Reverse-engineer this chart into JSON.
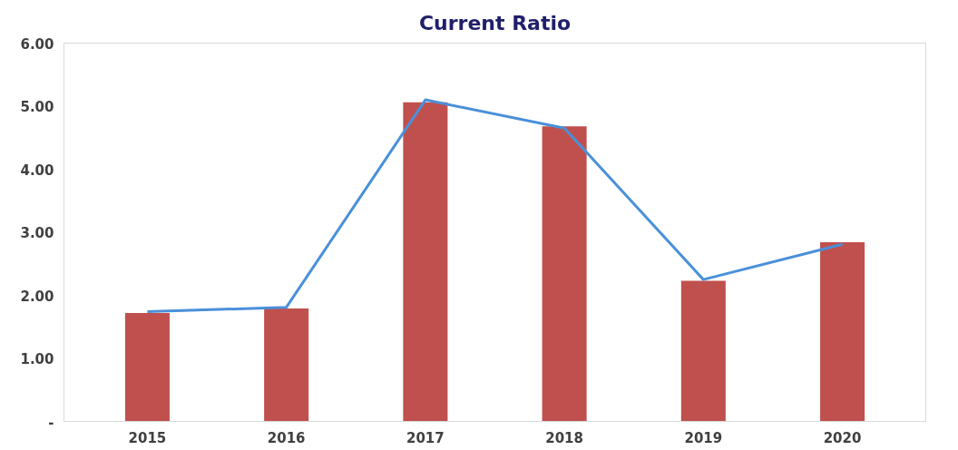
{
  "chart_data": {
    "type": "bar",
    "title": "Current Ratio",
    "categories": [
      "2015",
      "2016",
      "2017",
      "2018",
      "2019",
      "2020"
    ],
    "series": [
      {
        "color": "#c0504d",
        "values": [
          1.72,
          1.79,
          5.06,
          4.68,
          2.23,
          2.84
        ]
      },
      {
        "type": "line",
        "color": "#4a90d9",
        "values": [
          1.74,
          1.81,
          5.1,
          4.65,
          2.25,
          2.81
        ]
      }
    ],
    "ylim": [
      0,
      6
    ],
    "yticks": [
      {
        "value": 0,
        "label": "-"
      },
      {
        "value": 1,
        "label": "1.00"
      },
      {
        "value": 2,
        "label": "2.00"
      },
      {
        "value": 3,
        "label": "3.00"
      },
      {
        "value": 4,
        "label": "4.00"
      },
      {
        "value": 5,
        "label": "5.00"
      },
      {
        "value": 6,
        "label": "6.00"
      }
    ],
    "grid": false,
    "marker": "none",
    "line_style": "solid"
  }
}
